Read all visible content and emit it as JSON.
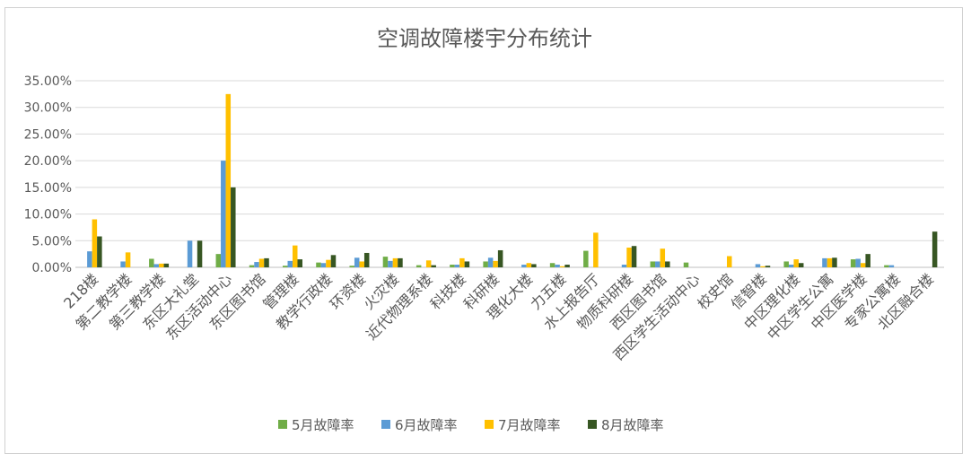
{
  "chart_data": {
    "type": "bar",
    "title": "空调故障楼宇分布统计",
    "xlabel": "",
    "ylabel": "",
    "ylim": [
      0,
      0.35
    ],
    "yticks": [
      "0.00%",
      "5.00%",
      "10.00%",
      "15.00%",
      "20.00%",
      "25.00%",
      "30.00%",
      "35.00%"
    ],
    "grid": true,
    "legend_position": "bottom",
    "categories": [
      "218楼",
      "第二教学楼",
      "第三教学楼",
      "东区大礼堂",
      "东区活动中心",
      "东区图书馆",
      "管理楼",
      "教学行政楼",
      "环资楼",
      "火灾楼",
      "近代物理系楼",
      "科技楼",
      "科研楼",
      "理化大楼",
      "力五楼",
      "水上报告厅",
      "物质科研楼",
      "西区图书馆",
      "西区学生活动中心",
      "校史馆",
      "信智楼",
      "中区理化楼",
      "中区学生公寓",
      "中区医学楼",
      "专家公寓楼",
      "北区融合楼"
    ],
    "series": [
      {
        "name": "5月故障率",
        "color": "#70ad47",
        "values": [
          0,
          0,
          0.016,
          0,
          0.025,
          0.004,
          0.003,
          0.009,
          0.003,
          0.02,
          0.004,
          0.005,
          0.011,
          0,
          0.008,
          0.031,
          0,
          0.011,
          0.009,
          0,
          0,
          0.011,
          0,
          0.015,
          0.004,
          0
        ]
      },
      {
        "name": "6月故障率",
        "color": "#5b9bd5",
        "values": [
          0.03,
          0.011,
          0.006,
          0.05,
          0.2,
          0.01,
          0.012,
          0.008,
          0.018,
          0.012,
          0,
          0.005,
          0.018,
          0.005,
          0.005,
          0,
          0.005,
          0.011,
          0,
          0,
          0.006,
          0.005,
          0.017,
          0.016,
          0.004,
          0
        ]
      },
      {
        "name": "7月故障率",
        "color": "#ffc000",
        "values": [
          0.09,
          0.028,
          0.007,
          0,
          0.325,
          0.016,
          0.041,
          0.014,
          0.011,
          0.017,
          0.013,
          0.017,
          0.012,
          0.008,
          0.002,
          0.065,
          0.037,
          0.035,
          0,
          0.021,
          0.002,
          0.015,
          0.017,
          0.008,
          0,
          0
        ]
      },
      {
        "name": "8月故障率",
        "color": "#375623",
        "values": [
          0.058,
          0,
          0.007,
          0.05,
          0.15,
          0.017,
          0.015,
          0.023,
          0.027,
          0.017,
          0.004,
          0.011,
          0.032,
          0.006,
          0.005,
          0,
          0.04,
          0.011,
          0,
          0,
          0.003,
          0.008,
          0.018,
          0.025,
          0,
          0.067
        ]
      }
    ]
  }
}
